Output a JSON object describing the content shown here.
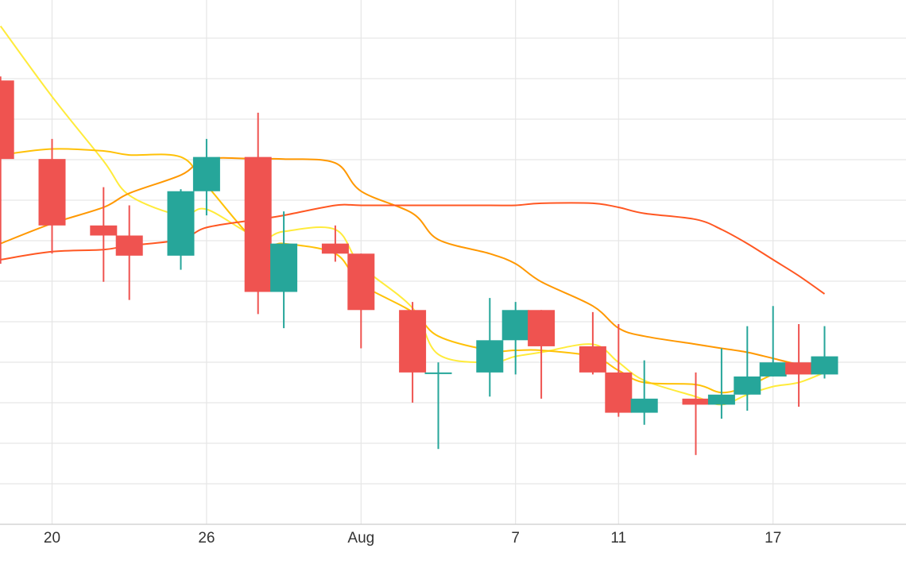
{
  "chart_data": {
    "type": "candlestick",
    "x_tick_labels": [
      "20",
      "26",
      "Aug",
      "7",
      "11",
      "17"
    ],
    "grid": true,
    "colors": {
      "up": "#26a69a",
      "down": "#ef5350",
      "ma_5": "#ffeb3b",
      "ma_10": "#ffc107",
      "ma_20": "#ff9800",
      "ma_30": "#ff5722"
    },
    "candles": [
      {
        "date": "Jul 18",
        "open": 102.0,
        "high": 102.2,
        "low": 92.9,
        "close": 98.1
      },
      {
        "date": "Jul 20",
        "open": 98.1,
        "high": 99.1,
        "low": 93.4,
        "close": 94.8
      },
      {
        "date": "Jul 22",
        "open": 94.8,
        "high": 96.7,
        "low": 92.0,
        "close": 94.3
      },
      {
        "date": "Jul 23",
        "open": 94.3,
        "high": 95.8,
        "low": 91.1,
        "close": 93.3
      },
      {
        "date": "Jul 25",
        "open": 93.3,
        "high": 96.6,
        "low": 92.6,
        "close": 96.5
      },
      {
        "date": "Jul 26",
        "open": 96.5,
        "high": 99.1,
        "low": 95.3,
        "close": 98.2
      },
      {
        "date": "Jul 28",
        "open": 98.2,
        "high": 100.4,
        "low": 90.4,
        "close": 91.5
      },
      {
        "date": "Jul 29",
        "open": 91.5,
        "high": 95.5,
        "low": 89.7,
        "close": 93.9
      },
      {
        "date": "Jul 31",
        "open": 93.9,
        "high": 94.8,
        "low": 93.0,
        "close": 93.4
      },
      {
        "date": "Aug 1",
        "open": 93.4,
        "high": 93.4,
        "low": 88.7,
        "close": 90.6
      },
      {
        "date": "Aug 3",
        "open": 90.6,
        "high": 91.0,
        "low": 86.0,
        "close": 87.5
      },
      {
        "date": "Aug 4",
        "open": 87.5,
        "high": 88.0,
        "low": 83.7,
        "close": 87.5
      },
      {
        "date": "Aug 6",
        "open": 87.5,
        "high": 91.2,
        "low": 86.3,
        "close": 89.1
      },
      {
        "date": "Aug 7",
        "open": 89.1,
        "high": 91.0,
        "low": 87.4,
        "close": 90.6
      },
      {
        "date": "Aug 8",
        "open": 90.6,
        "high": 90.6,
        "low": 86.2,
        "close": 88.8
      },
      {
        "date": "Aug 10",
        "open": 88.8,
        "high": 90.5,
        "low": 87.4,
        "close": 87.5
      },
      {
        "date": "Aug 11",
        "open": 87.5,
        "high": 89.9,
        "low": 85.3,
        "close": 85.5
      },
      {
        "date": "Aug 12",
        "open": 85.5,
        "high": 88.1,
        "low": 84.9,
        "close": 86.2
      },
      {
        "date": "Aug 14",
        "open": 86.2,
        "high": 87.5,
        "low": 83.4,
        "close": 85.9
      },
      {
        "date": "Aug 15",
        "open": 85.9,
        "high": 88.7,
        "low": 85.2,
        "close": 86.4
      },
      {
        "date": "Aug 16",
        "open": 86.4,
        "high": 89.8,
        "low": 85.6,
        "close": 87.3
      },
      {
        "date": "Aug 17",
        "open": 87.3,
        "high": 90.8,
        "low": 87.3,
        "close": 88.0
      },
      {
        "date": "Aug 18",
        "open": 88.0,
        "high": 89.9,
        "low": 85.8,
        "close": 87.4
      },
      {
        "date": "Aug 19",
        "open": 87.4,
        "high": 89.8,
        "low": 87.2,
        "close": 88.3
      }
    ],
    "moving_averages": [
      {
        "name": "ma_5",
        "values": [
          104.7,
          101.2,
          98.0,
          96.3,
          95.3,
          95.6,
          94.2,
          94.5,
          94.6,
          92.8,
          90.7,
          88.4,
          88.0,
          88.3,
          88.5,
          88.9,
          88.0,
          87.1,
          86.3,
          85.9,
          86.4,
          86.8,
          87.0,
          87.5
        ]
      },
      {
        "name": "ma_10",
        "values": [
          98.3,
          98.6,
          98.5,
          98.3,
          98.2,
          96.8,
          93.9,
          93.9,
          93.4,
          91.9,
          90.5,
          89.3,
          88.6,
          88.6,
          88.6,
          88.3,
          87.6,
          87.0,
          86.9,
          86.5,
          86.8,
          87.4,
          87.7,
          87.6
        ]
      },
      {
        "name": "ma_20",
        "values": [
          93.9,
          94.9,
          95.7,
          96.4,
          97.3,
          98.1,
          98.1,
          98.1,
          97.9,
          96.5,
          95.4,
          94.1,
          93.4,
          92.9,
          92.0,
          90.8,
          89.7,
          89.3,
          88.9,
          88.7,
          88.5,
          88.2,
          87.9,
          87.8
        ]
      },
      {
        "name": "ma_30",
        "values": [
          93.1,
          93.5,
          93.6,
          93.8,
          94.1,
          94.7,
          95.1,
          95.3,
          95.8,
          95.8,
          95.8,
          95.8,
          95.8,
          95.8,
          95.9,
          95.9,
          95.7,
          95.4,
          95.1,
          94.6,
          93.9,
          93.1,
          92.3,
          91.4
        ]
      }
    ]
  }
}
